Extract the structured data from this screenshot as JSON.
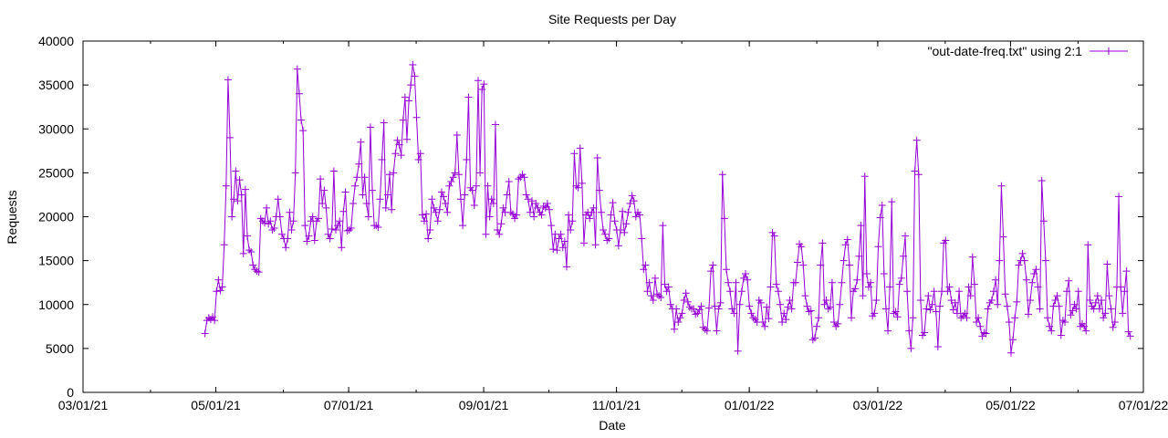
{
  "chart_data": {
    "type": "line",
    "title": "Site Requests per Day",
    "xlabel": "Date",
    "ylabel": "Requests",
    "x_ticks": [
      "03/01/21",
      "05/01/21",
      "07/01/21",
      "09/01/21",
      "11/01/21",
      "01/01/22",
      "03/01/22",
      "05/01/22",
      "07/01/22"
    ],
    "y_ticks": [
      "0",
      "5000",
      "10000",
      "15000",
      "20000",
      "25000",
      "30000",
      "35000",
      "40000"
    ],
    "xlim": [
      "2021-03-01",
      "2022-07-01"
    ],
    "ylim": [
      0,
      40000
    ],
    "grid": false,
    "legend_position": "top-right",
    "line_color": "#9400D3",
    "series": [
      {
        "name": "\"out-date-freq.txt\" using 2:1",
        "x_start": "2021-04-26",
        "x_end": "2022-06-25",
        "values": [
          6700,
          8200,
          8500,
          8300,
          8600,
          8200,
          11500,
          12800,
          11600,
          12000,
          16800,
          23500,
          35600,
          29000,
          20000,
          22000,
          25200,
          21800,
          24200,
          22500,
          15800,
          23100,
          17800,
          16200,
          16000,
          14500,
          14000,
          13800,
          13700,
          19800,
          19500,
          19300,
          21000,
          19200,
          19500,
          18500,
          18700,
          20000,
          22000,
          20000,
          18000,
          17500,
          16500,
          17500,
          20500,
          18500,
          19500,
          25000,
          36800,
          34000,
          31000,
          29800,
          19000,
          17200,
          17800,
          19500,
          20000,
          17300,
          19500,
          19800,
          24300,
          21500,
          23000,
          21000,
          18000,
          17500,
          18600,
          25200,
          18500,
          19000,
          19500,
          16500,
          20600,
          22800,
          18400,
          18500,
          18700,
          21500,
          23500,
          24500,
          26000,
          28500,
          22500,
          24500,
          21500,
          20000,
          30200,
          23000,
          19000,
          19000,
          18800,
          22000,
          26500,
          30700,
          21000,
          22500,
          24800,
          20800,
          25000,
          27200,
          28700,
          28200,
          27000,
          31000,
          33600,
          28800,
          33200,
          35000,
          37300,
          36000,
          31300,
          26500,
          27200,
          20200,
          19500,
          20300,
          17500,
          18500,
          22000,
          21000,
          20500,
          19500,
          20800,
          22800,
          22300,
          21500,
          20500,
          23500,
          24000,
          24500,
          25000,
          29300,
          24800,
          22000,
          19000,
          22500,
          26500,
          33600,
          23300,
          23000,
          21300,
          23500,
          35500,
          25000,
          34500,
          35100,
          18000,
          23500,
          20000,
          22000,
          21500,
          30500,
          18500,
          18000,
          19200,
          21000,
          20500,
          22500,
          24000,
          20500,
          20300,
          19800,
          20200,
          24300,
          24500,
          24800,
          24500,
          22500,
          22000,
          20500,
          21800,
          20000,
          21500,
          21000,
          20500,
          20200,
          21200,
          21000,
          21500,
          20800,
          19000,
          16300,
          18000,
          16200,
          17500,
          18000,
          16500,
          17200,
          14300,
          20200,
          18500,
          19500,
          27200,
          23500,
          23300,
          27800,
          23800,
          17000,
          20200,
          20500,
          19800,
          20500,
          21000,
          16800,
          26700,
          23000,
          20500,
          18500,
          18000,
          17300,
          17500,
          20200,
          21600,
          19500,
          18500,
          16700,
          18500,
          20600,
          18200,
          19200,
          20500,
          21500,
          22400,
          21800,
          20000,
          20500,
          20200,
          17500,
          14000,
          14500,
          11500,
          12500,
          11000,
          10500,
          13000,
          11200,
          11000,
          10800,
          19000,
          12300,
          11500,
          12000,
          10000,
          9500,
          7200,
          9500,
          8000,
          8500,
          9000,
          10500,
          11300,
          10300,
          9700,
          9500,
          9500,
          8900,
          9000,
          9400,
          9800,
          7400,
          7200,
          7000,
          9600,
          13800,
          14500,
          9800,
          7000,
          9500,
          10200,
          24800,
          19800,
          14000,
          12500,
          11500,
          9500,
          9000,
          12500,
          4700,
          10000,
          11500,
          13000,
          13500,
          12800,
          9800,
          9000,
          8500,
          8300,
          8000,
          10500,
          10200,
          8000,
          7500,
          9700,
          8400,
          12000,
          18200,
          17800,
          12300,
          11500,
          10000,
          8000,
          9000,
          8300,
          9700,
          10500,
          9500,
          12500,
          12500,
          14800,
          16900,
          16600,
          14500,
          11000,
          9800,
          9200,
          9300,
          6000,
          6200,
          7500,
          8500,
          14500,
          17000,
          10000,
          10500,
          9500,
          9700,
          12500,
          8000,
          7500,
          7800,
          10000,
          12500,
          15000,
          16800,
          17400,
          14500,
          8500,
          11500,
          11800,
          12800,
          15500,
          19000,
          11000,
          24600,
          13500,
          12000,
          12500,
          8700,
          9000,
          10500,
          16600,
          19900,
          21300,
          13500,
          9500,
          7000,
          12000,
          21700,
          9000,
          9200,
          8600,
          12300,
          13000,
          15500,
          17800,
          11500,
          7000,
          5000,
          8500,
          25200,
          28700,
          24800,
          10500,
          6500,
          6800,
          9500,
          11000,
          9400,
          10000,
          11500,
          9200,
          5200,
          9800,
          11500,
          17000,
          17300,
          11500,
          12000,
          10500,
          9400,
          10200,
          9000,
          11500,
          8500,
          8700,
          9000,
          8500,
          12000,
          11000,
          15400,
          12300,
          8000,
          8500,
          7500,
          6400,
          6800,
          6700,
          9500,
          10200,
          10500,
          11500,
          12800,
          10000,
          15000,
          23500,
          17700,
          11200,
          9800,
          8000,
          4500,
          6000,
          8500,
          10300,
          14500,
          15000,
          15800,
          15000,
          12800,
          8900,
          10500,
          12500,
          13500,
          14000,
          12000,
          9500,
          24100,
          19500,
          15000,
          8500,
          7500,
          7000,
          9800,
          10500,
          11000,
          9800,
          6500,
          8200,
          8000,
          11500,
          12700,
          8800,
          9300,
          10000,
          9500,
          11500,
          7500,
          7800,
          7500,
          7000,
          16800,
          10500,
          9800,
          9500,
          10200,
          11000,
          9500,
          10500,
          8500,
          9000,
          14600,
          11000,
          9500,
          7400,
          8000,
          12000,
          22300,
          12000,
          9000,
          11500,
          13800,
          6900,
          6400
        ]
      }
    ]
  }
}
